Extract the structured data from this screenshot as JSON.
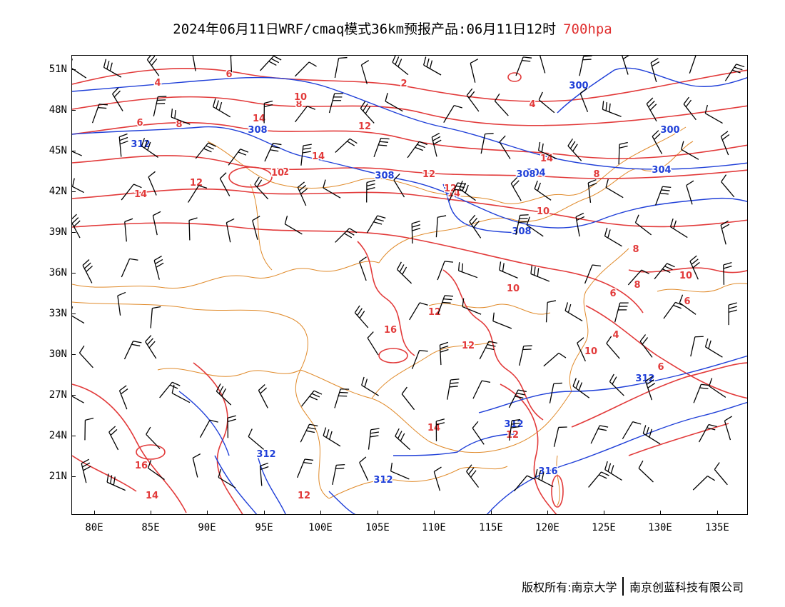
{
  "title": {
    "main": "2024年06月11日WRF/cmaq模式36km预报产品:06月11日12时",
    "level": "700hpa"
  },
  "colors": {
    "temperature": "#e23a3a",
    "height": "#1f3fd8",
    "border": "#e08a2a",
    "wind": "#000000"
  },
  "lat_labels": [
    "51N",
    "48N",
    "45N",
    "42N",
    "39N",
    "36N",
    "33N",
    "30N",
    "27N",
    "24N",
    "21N"
  ],
  "lon_labels": [
    "80E",
    "85E",
    "90E",
    "95E",
    "100E",
    "105E",
    "110E",
    "115E",
    "120E",
    "125E",
    "130E",
    "135E"
  ],
  "contour_labels": {
    "temperature": [
      "4",
      "6",
      "8",
      "6",
      "2",
      "4",
      "8",
      "10",
      "12",
      "14",
      "14",
      "12",
      "12",
      "10",
      "14",
      "12",
      "14",
      "14",
      "16",
      "12",
      "10",
      "10",
      "12",
      "8",
      "6",
      "8",
      "8",
      "6",
      "4",
      "10",
      "12",
      "14",
      "16",
      "14",
      "12",
      "12",
      "10",
      "6"
    ],
    "height": [
      "308",
      "312",
      "308",
      "308",
      "304",
      "308",
      "304",
      "300",
      "300",
      "312",
      "312",
      "312",
      "316",
      "312"
    ]
  },
  "footer": {
    "copyright": "版权所有:南京大学",
    "company": "南京创蓝科技有限公司"
  }
}
